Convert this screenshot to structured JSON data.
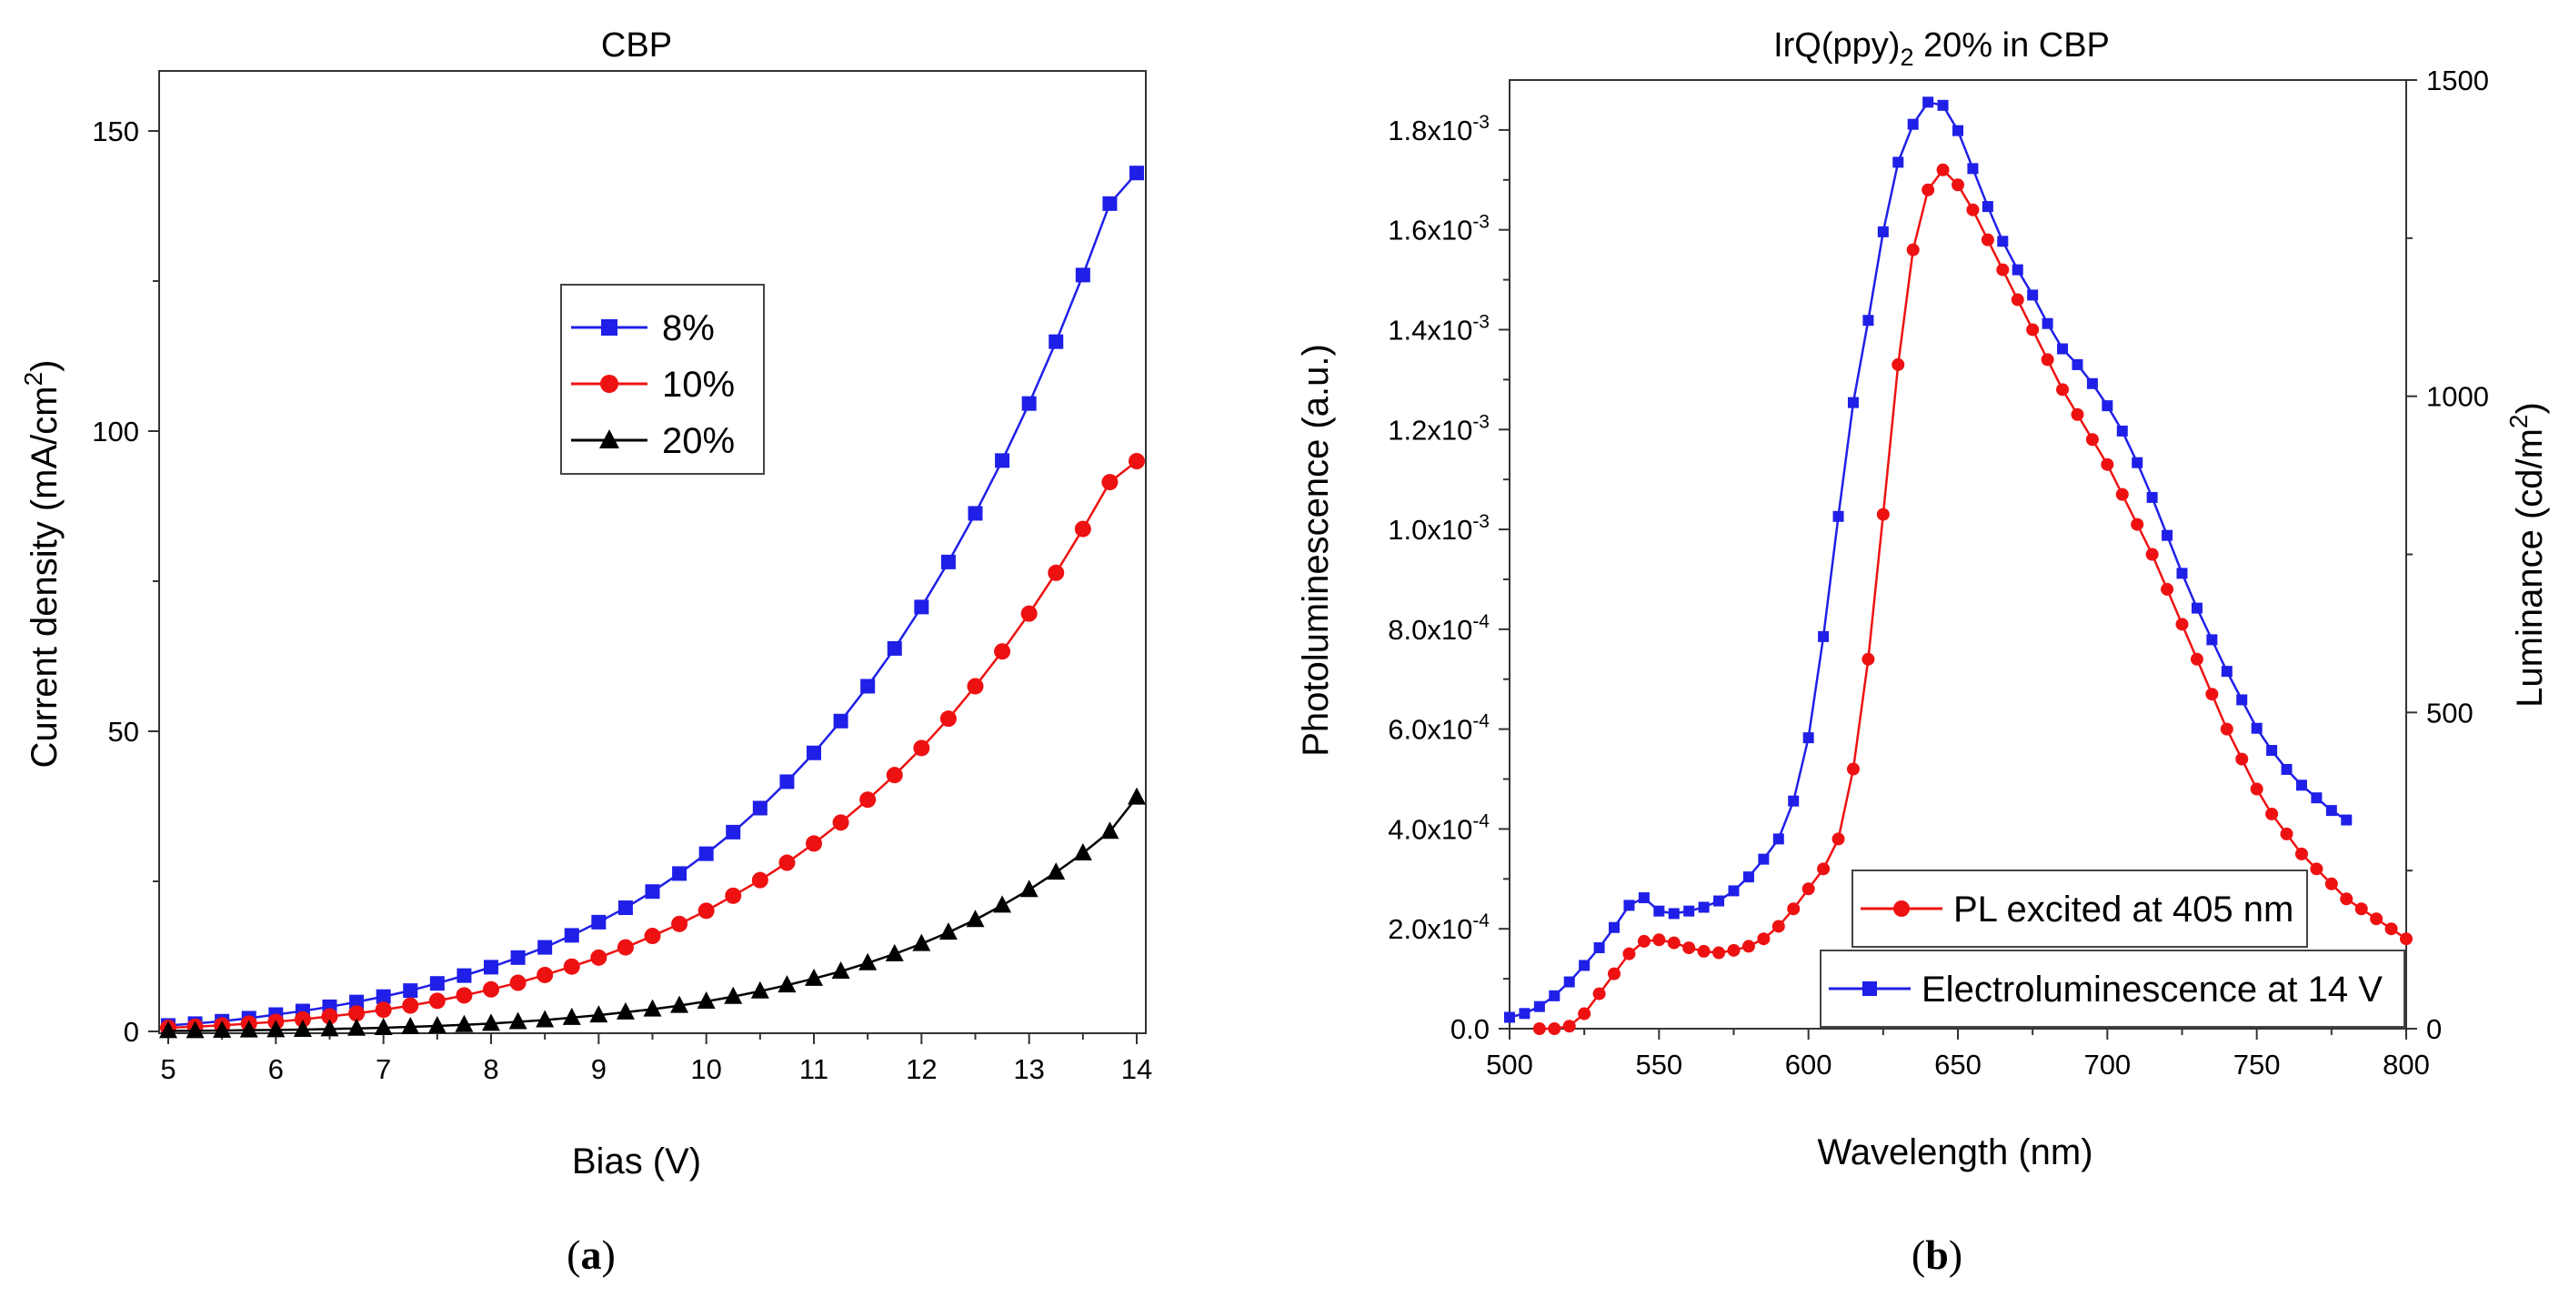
{
  "chart_data": [
    {
      "panel": "a",
      "caption": "(a)",
      "caption_parts": {
        "open": "(",
        "letter": "a",
        "close": ")"
      },
      "type": "line",
      "title": "CBP",
      "xlabel": "Bias (V)",
      "ylabel_parts": {
        "main": "Current density (mA/cm",
        "sup": "2",
        "end": ")"
      },
      "xlim": [
        5,
        14
      ],
      "ylim": [
        0,
        160
      ],
      "xticks": [
        5,
        6,
        7,
        8,
        9,
        10,
        11,
        12,
        13,
        14
      ],
      "yticks": [
        0,
        50,
        100,
        150
      ],
      "series": [
        {
          "name": "8%",
          "color": "#1f1fe8",
          "marker": "square",
          "x": [
            5.0,
            5.25,
            5.5,
            5.75,
            6.0,
            6.25,
            6.5,
            6.75,
            7.0,
            7.25,
            7.5,
            7.75,
            8.0,
            8.25,
            8.5,
            8.75,
            9.0,
            9.25,
            9.5,
            9.75,
            10.0,
            10.25,
            10.5,
            10.75,
            11.0,
            11.25,
            11.5,
            11.75,
            12.0,
            12.25,
            12.5,
            12.75,
            13.0,
            13.25,
            13.5,
            13.75,
            14.0
          ],
          "y": [
            1.0,
            1.3,
            1.7,
            2.2,
            2.8,
            3.4,
            4.1,
            4.9,
            5.8,
            6.8,
            8.0,
            9.3,
            10.7,
            12.3,
            14.0,
            16.0,
            18.2,
            20.6,
            23.3,
            26.3,
            29.6,
            33.2,
            37.2,
            41.6,
            46.4,
            51.7,
            57.5,
            63.8,
            70.7,
            78.2,
            86.3,
            95.1,
            104.6,
            114.9,
            126.0,
            137.9,
            143.0
          ]
        },
        {
          "name": "10%",
          "color": "#ee1111",
          "marker": "circle",
          "x": [
            5.0,
            5.25,
            5.5,
            5.75,
            6.0,
            6.25,
            6.5,
            6.75,
            7.0,
            7.25,
            7.5,
            7.75,
            8.0,
            8.25,
            8.5,
            8.75,
            9.0,
            9.25,
            9.5,
            9.75,
            10.0,
            10.25,
            10.5,
            10.75,
            11.0,
            11.25,
            11.5,
            11.75,
            12.0,
            12.25,
            12.5,
            12.75,
            13.0,
            13.25,
            13.5,
            13.75,
            14.0
          ],
          "y": [
            0.6,
            0.8,
            1.0,
            1.3,
            1.6,
            2.0,
            2.5,
            3.0,
            3.6,
            4.3,
            5.1,
            6.0,
            7.0,
            8.1,
            9.4,
            10.8,
            12.3,
            14.0,
            15.9,
            17.9,
            20.1,
            22.6,
            25.2,
            28.1,
            31.3,
            34.8,
            38.6,
            42.7,
            47.2,
            52.1,
            57.5,
            63.3,
            69.6,
            76.4,
            83.7,
            91.5,
            95.0
          ]
        },
        {
          "name": "20%",
          "color": "#000000",
          "marker": "triangle",
          "x": [
            5.0,
            5.25,
            5.5,
            5.75,
            6.0,
            6.25,
            6.5,
            6.75,
            7.0,
            7.25,
            7.5,
            7.75,
            8.0,
            8.25,
            8.5,
            8.75,
            9.0,
            9.25,
            9.5,
            9.75,
            10.0,
            10.25,
            10.5,
            10.75,
            11.0,
            11.25,
            11.5,
            11.75,
            12.0,
            12.25,
            12.5,
            12.75,
            13.0,
            13.25,
            13.5,
            13.75,
            14.0
          ],
          "y": [
            0.1,
            0.1,
            0.15,
            0.2,
            0.25,
            0.3,
            0.4,
            0.5,
            0.6,
            0.75,
            0.9,
            1.1,
            1.3,
            1.6,
            1.9,
            2.3,
            2.7,
            3.2,
            3.7,
            4.3,
            5.0,
            5.8,
            6.7,
            7.7,
            8.8,
            10.0,
            11.4,
            12.9,
            14.6,
            16.5,
            18.6,
            21.0,
            23.6,
            26.5,
            29.7,
            33.3,
            39.0
          ]
        }
      ],
      "legend": "inside upper-center"
    },
    {
      "panel": "b",
      "caption": "(b)",
      "caption_parts": {
        "open": "(",
        "letter": "b",
        "close": ")"
      },
      "type": "line",
      "title_parts": {
        "main": "IrQ(ppy)",
        "sub": "2",
        "end": " 20% in CBP"
      },
      "xlabel": "Wavelength (nm)",
      "ylabel_left": "Photoluminescence (a.u.)",
      "ylabel_right_parts": {
        "main": "Luminance (cd/m",
        "sup": "2",
        "end": ")"
      },
      "xlim": [
        500,
        800
      ],
      "ylim_left": [
        0,
        0.0019
      ],
      "ylim_right": [
        0,
        1500
      ],
      "xticks": [
        500,
        550,
        600,
        650,
        700,
        750,
        800
      ],
      "yticks_left": [
        {
          "value": 0.0,
          "base": "0.0",
          "exp": ""
        },
        {
          "value": 0.0002,
          "base": "2.0x10",
          "exp": "-4"
        },
        {
          "value": 0.0004,
          "base": "4.0x10",
          "exp": "-4"
        },
        {
          "value": 0.0006,
          "base": "6.0x10",
          "exp": "-4"
        },
        {
          "value": 0.0008,
          "base": "8.0x10",
          "exp": "-4"
        },
        {
          "value": 0.001,
          "base": "1.0x10",
          "exp": "-3"
        },
        {
          "value": 0.0012,
          "base": "1.2x10",
          "exp": "-3"
        },
        {
          "value": 0.0014,
          "base": "1.4x10",
          "exp": "-3"
        },
        {
          "value": 0.0016,
          "base": "1.6x10",
          "exp": "-3"
        },
        {
          "value": 0.0018,
          "base": "1.8x10",
          "exp": "-3"
        }
      ],
      "yticks_right": [
        0,
        500,
        1000,
        1500
      ],
      "series": [
        {
          "name": "PL excited at 405 nm",
          "color": "#ee1111",
          "marker": "circle",
          "axis": "left",
          "x": [
            510,
            515,
            520,
            525,
            530,
            535,
            540,
            545,
            550,
            555,
            560,
            565,
            570,
            575,
            580,
            585,
            590,
            595,
            600,
            605,
            610,
            615,
            620,
            625,
            630,
            635,
            640,
            645,
            650,
            655,
            660,
            665,
            670,
            675,
            680,
            685,
            690,
            695,
            700,
            705,
            710,
            715,
            720,
            725,
            730,
            735,
            740,
            745,
            750,
            755,
            760,
            765,
            770,
            775,
            780,
            785,
            790,
            795,
            800
          ],
          "y": [
            0.0,
            0.0,
            5e-06,
            3e-05,
            7e-05,
            0.00011,
            0.00015,
            0.000175,
            0.000178,
            0.000172,
            0.000162,
            0.000155,
            0.000152,
            0.000157,
            0.000165,
            0.00018,
            0.000205,
            0.00024,
            0.00028,
            0.00032,
            0.00038,
            0.00052,
            0.00074,
            0.00103,
            0.00133,
            0.00156,
            0.00168,
            0.00172,
            0.00169,
            0.00164,
            0.00158,
            0.00152,
            0.00146,
            0.0014,
            0.00134,
            0.00128,
            0.00123,
            0.00118,
            0.00113,
            0.00107,
            0.00101,
            0.00095,
            0.00088,
            0.00081,
            0.00074,
            0.00067,
            0.0006,
            0.00054,
            0.00048,
            0.00043,
            0.00039,
            0.00035,
            0.00032,
            0.00029,
            0.00026,
            0.00024,
            0.00022,
            0.0002,
            0.00018
          ]
        },
        {
          "name": "Electroluminescence at 14 V",
          "color": "#1f1fe8",
          "marker": "square",
          "axis": "right",
          "x": [
            500,
            505,
            510,
            515,
            520,
            525,
            530,
            535,
            540,
            545,
            550,
            555,
            560,
            565,
            570,
            575,
            580,
            585,
            590,
            595,
            600,
            605,
            610,
            615,
            620,
            625,
            630,
            635,
            640,
            645,
            650,
            655,
            660,
            665,
            670,
            675,
            680,
            685,
            690,
            695,
            700,
            705,
            710,
            715,
            720,
            725,
            730,
            735,
            740,
            745,
            750,
            755,
            760,
            765,
            770,
            775,
            780
          ],
          "y": [
            18,
            24,
            35,
            52,
            74,
            100,
            128,
            160,
            195,
            207,
            186,
            182,
            186,
            192,
            202,
            218,
            240,
            268,
            300,
            360,
            460,
            620,
            810,
            990,
            1120,
            1260,
            1370,
            1430,
            1465,
            1460,
            1420,
            1360,
            1300,
            1245,
            1200,
            1160,
            1115,
            1075,
            1050,
            1020,
            985,
            945,
            895,
            840,
            780,
            720,
            665,
            615,
            565,
            520,
            475,
            440,
            410,
            385,
            365,
            345,
            330
          ]
        }
      ],
      "legend": "lower-right"
    }
  ]
}
